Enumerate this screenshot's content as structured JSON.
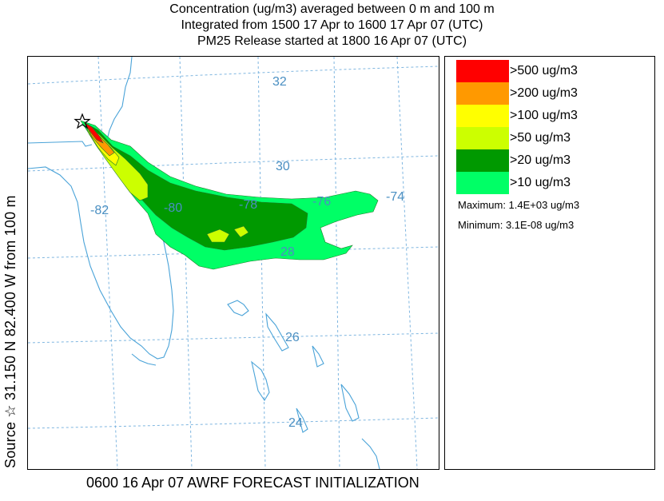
{
  "title_lines": [
    "Concentration  (ug/m3) averaged between      0 m and    100 m",
    "Integrated from 1500 17 Apr to 1600 17 Apr 07 (UTC)",
    "PM25 Release started at 1800 16 Apr 07 (UTC)"
  ],
  "legend": [
    {
      "label": ">500 ug/m3",
      "color": "#ff0000"
    },
    {
      "label": ">200 ug/m3",
      "color": "#ff9900"
    },
    {
      "label": ">100 ug/m3",
      "color": "#ffff00"
    },
    {
      "label": ">50 ug/m3",
      "color": "#ccff00"
    },
    {
      "label": ">20 ug/m3",
      "color": "#009900"
    },
    {
      "label": ">10 ug/m3",
      "color": "#00ff66"
    }
  ],
  "stats": {
    "maximum": "Maximum: 1.4E+03 ug/m3",
    "minimum": "Minimum: 3.1E-08 ug/m3"
  },
  "side_label": "Source ☆  31.150  N  82.400  W    from    100 m",
  "footer": "0600 16 Apr 07 AWRF FORECAST INITIALIZATION",
  "grid_labels": {
    "lat": [
      "32",
      "30",
      "28",
      "26",
      "24"
    ],
    "lon": [
      "-82",
      "-80",
      "-78",
      "-76",
      "-74"
    ]
  },
  "colors": {
    "coast": "#4aa3d8",
    "grid": "#7fb6e0",
    "grid_label": "#4a8fc2"
  }
}
